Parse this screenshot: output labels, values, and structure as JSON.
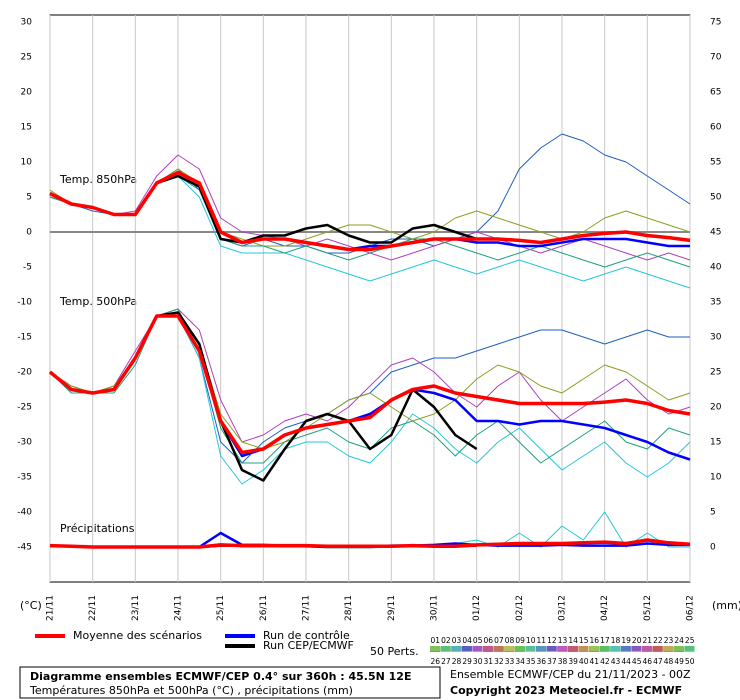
{
  "chart_data": {
    "type": "line",
    "xlim": [
      0,
      360
    ],
    "xticks": [
      {
        "value": 0,
        "label": "21/11"
      },
      {
        "value": 24,
        "label": "22/11"
      },
      {
        "value": 48,
        "label": "23/11"
      },
      {
        "value": 72,
        "label": "24/11"
      },
      {
        "value": 96,
        "label": "25/11"
      },
      {
        "value": 120,
        "label": "26/11"
      },
      {
        "value": 144,
        "label": "27/11"
      },
      {
        "value": 168,
        "label": "28/11"
      },
      {
        "value": 192,
        "label": "29/11"
      },
      {
        "value": 216,
        "label": "30/11"
      },
      {
        "value": 240,
        "label": "01/12"
      },
      {
        "value": 264,
        "label": "02/12"
      },
      {
        "value": 288,
        "label": "03/12"
      },
      {
        "value": 312,
        "label": "04/12"
      },
      {
        "value": 336,
        "label": "05/12"
      },
      {
        "value": 360,
        "label": "06/12"
      }
    ],
    "ylim": [
      -50,
      31
    ],
    "yticks": [
      30,
      25,
      20,
      15,
      10,
      5,
      0,
      -5,
      -10,
      -15,
      -20,
      -25,
      -30,
      -35,
      -40,
      -45
    ],
    "y2lim": [
      -5,
      76
    ],
    "y2ticks": [
      75,
      70,
      65,
      60,
      55,
      50,
      45,
      40,
      35,
      30,
      25,
      20,
      15,
      10,
      5,
      0
    ],
    "ylabel": "(°C)",
    "y2label": "(mm)",
    "grid": true,
    "annotations": [
      "Temp. 850hPa",
      "Temp. 500hPa",
      "Précipitations"
    ],
    "x": [
      0,
      12,
      24,
      36,
      48,
      60,
      72,
      84,
      96,
      108,
      120,
      132,
      144,
      156,
      168,
      180,
      192,
      204,
      216,
      228,
      240,
      252,
      264,
      276,
      288,
      300,
      312,
      324,
      336,
      348,
      360
    ],
    "series": [
      {
        "name": "Moyenne des scénarios",
        "color": "#ff0000",
        "t850": [
          5.5,
          4,
          3.5,
          2.5,
          2.5,
          7,
          8.5,
          7,
          0,
          -1.5,
          -1,
          -1,
          -1.5,
          -2,
          -2.5,
          -2.5,
          -2,
          -1.5,
          -1,
          -1,
          -1,
          -1,
          -1.2,
          -1.5,
          -1,
          -0.5,
          -0.2,
          0,
          -0.5,
          -0.8,
          -1.2
        ],
        "t500": [
          -20,
          -22.5,
          -23,
          -22.5,
          -18,
          -12,
          -12,
          -17,
          -27,
          -31.5,
          -31,
          -29,
          -28,
          -27.5,
          -27,
          -26.5,
          -24,
          -22.5,
          -22,
          -23,
          -23.5,
          -24,
          -24.5,
          -24.5,
          -24.5,
          -24.5,
          -24.3,
          -24,
          -24.5,
          -25.5,
          -26
        ],
        "precip": [
          0.2,
          0.1,
          0,
          0,
          0,
          0,
          0,
          0,
          0.3,
          0.2,
          0.2,
          0.2,
          0.2,
          0.1,
          0.1,
          0.1,
          0.1,
          0.2,
          0.1,
          0.1,
          0.3,
          0.4,
          0.5,
          0.5,
          0.5,
          0.6,
          0.7,
          0.5,
          1,
          0.6,
          0.4
        ]
      },
      {
        "name": "Run de contrôle",
        "color": "#0000ff",
        "t850": [
          5.5,
          4,
          3.5,
          2.5,
          2.5,
          7,
          8.5,
          7,
          0,
          -1.5,
          -1,
          -1,
          -1.5,
          -2,
          -2.5,
          -2,
          -2,
          -1.5,
          -1,
          -1,
          -1.5,
          -1.5,
          -2,
          -2,
          -1.5,
          -1,
          -1,
          -1,
          -1.5,
          -2,
          -2
        ],
        "t500": [
          -20,
          -22.5,
          -23,
          -22.5,
          -18,
          -12,
          -12,
          -17,
          -27,
          -32,
          -31,
          -29,
          -28,
          -27.5,
          -27,
          -26,
          -24,
          -22.5,
          -23,
          -24,
          -27,
          -27,
          -27.5,
          -27,
          -27,
          -27.5,
          -28,
          -29,
          -30,
          -31.5,
          -32.5
        ],
        "precip": [
          0.2,
          0.1,
          0,
          0,
          0,
          0,
          0,
          0,
          2,
          0.3,
          0.3,
          0.2,
          0.2,
          0.1,
          0.1,
          0.1,
          0.2,
          0.2,
          0.3,
          0.5,
          0.3,
          0.2,
          0.2,
          0.2,
          0.3,
          0.2,
          0.2,
          0.2,
          0.5,
          0.3,
          0.3
        ]
      },
      {
        "name": "Run CEP/ECMWF",
        "color": "#000000",
        "t850": [
          5.5,
          4,
          3.5,
          2.5,
          2.5,
          7,
          8,
          6.5,
          -1,
          -1.5,
          -0.5,
          -0.5,
          0.5,
          1,
          -0.5,
          -1.5,
          -1.5,
          0.5,
          1,
          0,
          -1,
          null,
          null,
          null,
          null,
          null,
          null,
          null,
          null,
          null,
          null
        ],
        "t500": [
          -20,
          -22.5,
          -23,
          -22.5,
          -18,
          -12,
          -11.5,
          -16,
          -27,
          -34,
          -35.5,
          -31,
          -27,
          -26,
          -27,
          -31,
          -29,
          -22.5,
          -25,
          -29,
          -31,
          null,
          null,
          null,
          null,
          null,
          null,
          null,
          null,
          null,
          null
        ],
        "precip": [
          0.2,
          0.1,
          0,
          0,
          0,
          0,
          0,
          0,
          0.2,
          0.2,
          0.2,
          0.1,
          0.1,
          0,
          0,
          0,
          0.1,
          0.1,
          0.2,
          0.1,
          0.2,
          null,
          null,
          null,
          null,
          null,
          null,
          null,
          null,
          null,
          null
        ]
      }
    ],
    "members": [
      {
        "color": "#1f5fbf",
        "t850": [
          5,
          4,
          3,
          2.5,
          2.5,
          7,
          9,
          6,
          -1,
          -2,
          -1,
          -2,
          -2,
          -3,
          -3,
          -2,
          -1,
          -1,
          -2,
          -1,
          0,
          3,
          9,
          12,
          14,
          13,
          11,
          10,
          8,
          6,
          4
        ],
        "t500": [
          -20,
          -22,
          -23,
          -22,
          -18,
          -12,
          -12,
          -18,
          -30,
          -33,
          -30,
          -28,
          -27,
          -26,
          -24,
          -23,
          -20,
          -19,
          -18,
          -18,
          -17,
          -16,
          -15,
          -14,
          -14,
          -15,
          -16,
          -15,
          -14,
          -15,
          -15
        ]
      },
      {
        "color": "#22c8d8",
        "t850": [
          5,
          4,
          3.5,
          2.5,
          2.5,
          7,
          8,
          5,
          -2,
          -3,
          -3,
          -3,
          -4,
          -5,
          -6,
          -7,
          -6,
          -5,
          -4,
          -5,
          -6,
          -5,
          -4,
          -5,
          -6,
          -7,
          -6,
          -5,
          -6,
          -7,
          -8
        ],
        "t500": [
          -20,
          -23,
          -23,
          -22,
          -18,
          -12,
          -12,
          -18,
          -32,
          -36,
          -34,
          -31,
          -30,
          -30,
          -32,
          -33,
          -30,
          -26,
          -28,
          -31,
          -33,
          -30,
          -28,
          -31,
          -34,
          -32,
          -30,
          -33,
          -35,
          -33,
          -30
        ],
        "precip": [
          0,
          0,
          0,
          0,
          0,
          0,
          0,
          0,
          0.5,
          0,
          0,
          0,
          0,
          0,
          0,
          0,
          0,
          0,
          0,
          0.5,
          1,
          0,
          2,
          0,
          3,
          1,
          5,
          0,
          2,
          0,
          0
        ]
      },
      {
        "color": "#b040c0",
        "t850": [
          5,
          4,
          3.5,
          2.5,
          3,
          8,
          11,
          9,
          2,
          0,
          -0.5,
          -1,
          -2,
          -1,
          -2,
          -3,
          -4,
          -3,
          -2,
          -1,
          0,
          -1,
          -2,
          -3,
          -2,
          -1,
          -2,
          -3,
          -4,
          -3,
          -4
        ],
        "t500": [
          -20,
          -22,
          -23,
          -22,
          -17,
          -12,
          -11,
          -14,
          -24,
          -30,
          -29,
          -27,
          -26,
          -27,
          -25,
          -22,
          -19,
          -18,
          -20,
          -23,
          -25,
          -22,
          -20,
          -24,
          -27,
          -25,
          -23,
          -21,
          -24,
          -26,
          -25
        ]
      },
      {
        "color": "#8aa020",
        "t850": [
          6,
          4,
          3.5,
          2.5,
          2.5,
          7,
          9,
          7,
          0,
          -1,
          -2,
          -2,
          -1,
          0,
          1,
          1,
          0,
          -1,
          0,
          2,
          3,
          2,
          1,
          0,
          -1,
          0,
          2,
          3,
          2,
          1,
          0
        ],
        "t500": [
          -20,
          -22,
          -23,
          -22,
          -18,
          -12,
          -12,
          -16,
          -26,
          -30,
          -31,
          -30,
          -28,
          -26,
          -24,
          -23,
          -25,
          -27,
          -26,
          -24,
          -21,
          -19,
          -20,
          -22,
          -23,
          -21,
          -19,
          -20,
          -22,
          -24,
          -23
        ]
      },
      {
        "color": "#20a080",
        "t850": [
          5,
          4,
          3.5,
          2.5,
          2.5,
          7,
          8,
          6,
          -1,
          -2,
          -2,
          -3,
          -2,
          -3,
          -4,
          -3,
          -2,
          -1,
          -1,
          -2,
          -3,
          -4,
          -3,
          -2,
          -3,
          -4,
          -5,
          -4,
          -3,
          -4,
          -5
        ],
        "t500": [
          -20,
          -23,
          -23,
          -23,
          -19,
          -12,
          -11,
          -17,
          -28,
          -33,
          -33,
          -30,
          -29,
          -28,
          -30,
          -31,
          -28,
          -27,
          -29,
          -32,
          -29,
          -27,
          -30,
          -33,
          -31,
          -29,
          -27,
          -30,
          -31,
          -28,
          -29
        ]
      }
    ],
    "perturbations_label": "50 Perts.",
    "perturbation_labels": [
      "01",
      "02",
      "03",
      "04",
      "05",
      "06",
      "07",
      "08",
      "09",
      "10",
      "11",
      "12",
      "13",
      "14",
      "15",
      "16",
      "17",
      "18",
      "19",
      "20",
      "21",
      "22",
      "23",
      "24",
      "25",
      "26",
      "27",
      "28",
      "29",
      "30",
      "31",
      "32",
      "33",
      "34",
      "35",
      "36",
      "37",
      "38",
      "39",
      "40",
      "41",
      "42",
      "43",
      "44",
      "45",
      "46",
      "47",
      "48",
      "49",
      "50"
    ],
    "footer": {
      "title": "Diagramme ensembles ECMWF/CEP 0.4° sur 360h : 45.5N 12E",
      "subtitle": "Températures 850hPa et 500hPa (°C) , précipitations (mm)",
      "run": "Ensemble ECMWF/CEP du 21/11/2023 - 00Z",
      "copyright": "Copyright 2023 Meteociel.fr - ECMWF"
    }
  }
}
